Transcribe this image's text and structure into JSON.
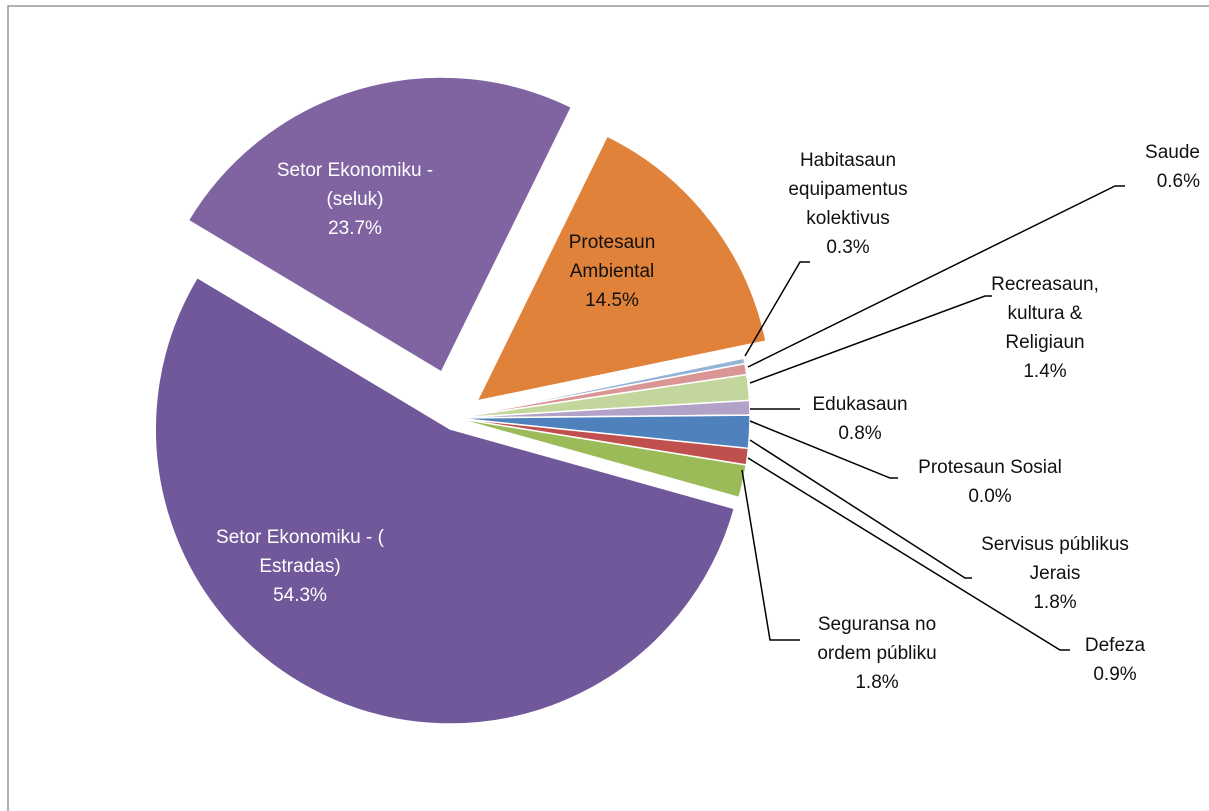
{
  "chart_data": {
    "type": "pie",
    "categories": [
      "Habitasaun equipamentus kolektivus",
      "Saude",
      "Recreasaun, kultura & Religiaun",
      "Edukasaun",
      "Protesaun Sosial",
      "Servisus públikus Jerais",
      "Defeza",
      "Seguransa no ordem públiku",
      "Setor Ekonomiku - ( Estradas)",
      "Setor Ekonomiku - (seluk)",
      "Protesaun Ambiental"
    ],
    "values": [
      0.3,
      0.6,
      1.4,
      0.8,
      0.0,
      1.8,
      0.9,
      1.8,
      54.3,
      23.7,
      14.5
    ],
    "value_labels": [
      "0.3%",
      "0.6%",
      "1.4%",
      "0.8%",
      "0.0%",
      "1.8%",
      "0.9%",
      "1.8%",
      "54.3%",
      "23.7%",
      "14.5%"
    ],
    "colors": [
      "#95b3d7",
      "#d99694",
      "#c3d69b",
      "#b3a2c7",
      "#93cddd",
      "#4f81bd",
      "#c0504d",
      "#9bbb59",
      "#70589a",
      "#8064a2",
      "#e0823a"
    ]
  }
}
